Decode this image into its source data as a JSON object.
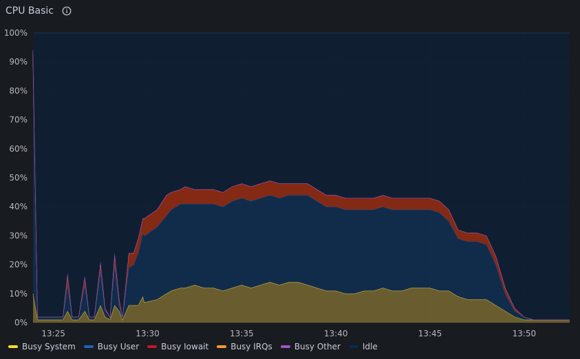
{
  "panel": {
    "title": "CPU Basic",
    "info_icon": "info-icon"
  },
  "chart_data": {
    "type": "area",
    "stacked": true,
    "ylim": [
      0,
      100
    ],
    "y_ticks": [
      "0%",
      "10%",
      "20%",
      "30%",
      "40%",
      "50%",
      "60%",
      "70%",
      "80%",
      "90%",
      "100%"
    ],
    "x_range": [
      "13:23:55",
      "13:52:25"
    ],
    "x_ticks": [
      "13:25",
      "13:30",
      "13:35",
      "13:40",
      "13:45",
      "13:50"
    ],
    "grid": true,
    "legend_position": "bottom-left",
    "x": [
      "13:23:55",
      "13:24:10",
      "13:24:30",
      "13:25:00",
      "13:25:30",
      "13:25:45",
      "13:26:00",
      "13:26:20",
      "13:26:40",
      "13:26:55",
      "13:27:10",
      "13:27:30",
      "13:27:45",
      "13:28:00",
      "13:28:15",
      "13:28:30",
      "13:28:40",
      "13:29:00",
      "13:29:15",
      "13:29:30",
      "13:29:45",
      "13:29:50",
      "13:30:30",
      "13:31:00",
      "13:31:15",
      "13:31:45",
      "13:32:00",
      "13:32:30",
      "13:33:00",
      "13:33:30",
      "13:34:00",
      "13:34:30",
      "13:35:00",
      "13:35:30",
      "13:36:00",
      "13:36:30",
      "13:37:00",
      "13:37:30",
      "13:38:00",
      "13:38:30",
      "13:39:00",
      "13:39:30",
      "13:40:00",
      "13:40:30",
      "13:41:00",
      "13:41:30",
      "13:42:00",
      "13:42:30",
      "13:43:00",
      "13:43:30",
      "13:44:00",
      "13:44:30",
      "13:45:00",
      "13:45:30",
      "13:46:00",
      "13:46:30",
      "13:47:00",
      "13:47:30",
      "13:48:00",
      "13:48:30",
      "13:49:00",
      "13:49:30",
      "13:50:00",
      "13:50:30",
      "13:51:00",
      "13:51:30",
      "13:52:00",
      "13:52:25"
    ],
    "series": [
      {
        "name": "Busy System",
        "color": "#fade2a",
        "values": [
          10,
          1,
          1,
          1,
          1,
          4,
          1,
          1,
          4,
          1,
          1,
          6,
          2,
          1,
          6,
          4,
          1,
          6,
          6,
          6,
          9,
          7,
          8,
          10,
          11,
          12,
          12,
          13,
          12,
          12,
          11,
          12,
          13,
          12,
          13,
          14,
          13,
          14,
          14,
          13,
          12,
          11,
          11,
          10,
          10,
          11,
          11,
          12,
          11,
          11,
          12,
          12,
          12,
          11,
          11,
          9,
          8,
          8,
          8,
          6,
          4,
          2,
          1,
          1,
          1,
          1,
          1,
          1
        ]
      },
      {
        "name": "Busy User",
        "color": "#1f60c4",
        "values": [
          80,
          1,
          1,
          1,
          1,
          9,
          1,
          1,
          9,
          1,
          1,
          12,
          2,
          1,
          14,
          2,
          1,
          13,
          14,
          18,
          22,
          23,
          25,
          27,
          28,
          29,
          29,
          28,
          29,
          29,
          29,
          30,
          30,
          30,
          30,
          30,
          30,
          30,
          30,
          31,
          30,
          29,
          29,
          29,
          29,
          28,
          28,
          28,
          28,
          28,
          27,
          27,
          27,
          27,
          24,
          20,
          20,
          20,
          19,
          14,
          6,
          2,
          1,
          0,
          0,
          0,
          0,
          0
        ]
      },
      {
        "name": "Busy Iowait",
        "color": "#c4162a",
        "values": [
          3,
          0,
          0,
          0,
          0,
          4,
          0,
          0,
          3,
          0,
          0,
          3,
          1,
          0,
          4,
          2,
          0,
          5,
          4,
          5,
          5,
          6,
          6,
          7,
          6,
          5,
          6,
          5,
          5,
          5,
          5,
          5,
          5,
          5,
          5,
          5,
          5,
          4,
          4,
          4,
          4,
          4,
          4,
          4,
          4,
          4,
          4,
          4,
          4,
          4,
          4,
          4,
          4,
          4,
          4,
          3,
          3,
          3,
          3,
          3,
          2,
          1,
          0,
          0,
          0,
          0,
          0,
          0
        ]
      },
      {
        "name": "Busy IRQs",
        "color": "#ff9830",
        "values": [
          0,
          0,
          0,
          0,
          0,
          0,
          0,
          0,
          0,
          0,
          0,
          0,
          0,
          0,
          0,
          0,
          0,
          0,
          0,
          0,
          0,
          0,
          0,
          0,
          0,
          0,
          0,
          0,
          0,
          0,
          0,
          0,
          0,
          0,
          0,
          0,
          0,
          0,
          0,
          0,
          0,
          0,
          0,
          0,
          0,
          0,
          0,
          0,
          0,
          0,
          0,
          0,
          0,
          0,
          0,
          0,
          0,
          0,
          0,
          0,
          0,
          0,
          0,
          0,
          0,
          0,
          0,
          0
        ]
      },
      {
        "name": "Busy Other",
        "color": "#a352cc",
        "values": [
          1,
          0,
          0,
          0,
          0,
          0,
          0,
          0,
          0,
          0,
          0,
          0,
          0,
          0,
          0,
          0,
          0,
          0,
          0,
          0,
          0,
          0,
          0,
          0,
          0,
          0,
          0,
          0,
          0,
          0,
          0,
          0,
          0,
          0,
          0,
          0,
          0,
          0,
          0,
          0,
          0,
          0,
          0,
          0,
          0,
          0,
          0,
          0,
          0,
          0,
          0,
          0,
          0,
          0,
          0,
          0,
          0,
          0,
          0,
          0,
          0,
          0,
          0,
          0,
          0,
          0,
          0,
          0
        ]
      },
      {
        "name": "Idle",
        "color": "#0a2a50",
        "values": [
          6,
          98,
          98,
          98,
          98,
          83,
          98,
          98,
          84,
          98,
          98,
          79,
          95,
          98,
          76,
          92,
          98,
          76,
          76,
          71,
          64,
          64,
          61,
          56,
          55,
          54,
          53,
          54,
          54,
          54,
          55,
          53,
          52,
          53,
          52,
          51,
          52,
          52,
          52,
          52,
          54,
          56,
          56,
          57,
          57,
          57,
          57,
          56,
          57,
          57,
          57,
          57,
          57,
          58,
          61,
          68,
          69,
          69,
          70,
          77,
          88,
          95,
          98,
          99,
          99,
          99,
          99,
          99
        ]
      }
    ]
  }
}
